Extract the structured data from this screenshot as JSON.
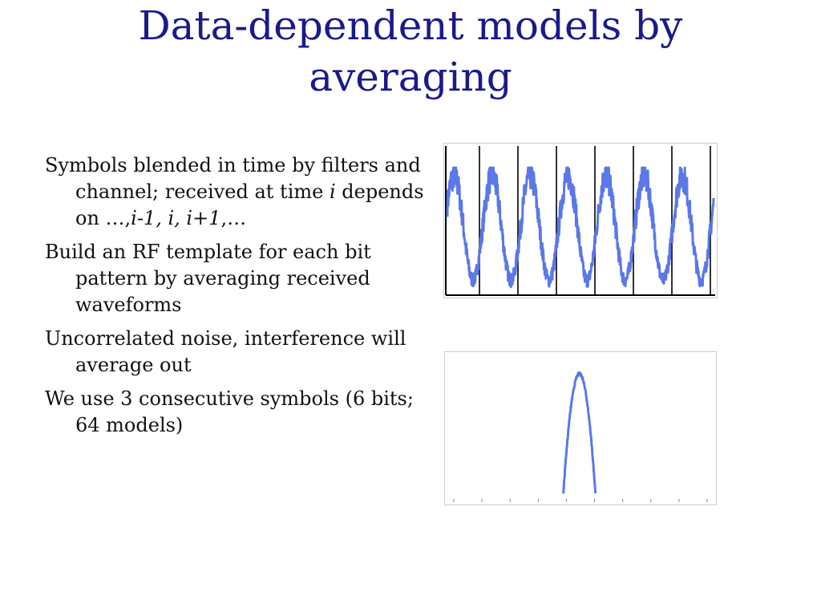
{
  "title": {
    "line1": "Data-dependent models by",
    "line2": "averaging"
  },
  "bullets": [
    {
      "segments": [
        {
          "text": "Symbols blended in time by filters and channel; received at time ",
          "italic": false
        },
        {
          "text": "i",
          "italic": true
        },
        {
          "text": " depends on …,",
          "italic": false
        },
        {
          "text": "i-1, i, i+1",
          "italic": true
        },
        {
          "text": ",…",
          "italic": false
        }
      ]
    },
    {
      "segments": [
        {
          "text": "Build an RF template for each bit pattern by averaging received waveforms",
          "italic": false
        }
      ]
    },
    {
      "segments": [
        {
          "text": "Uncorrelated noise, interference will average out",
          "italic": false
        }
      ]
    },
    {
      "segments": [
        {
          "text": "We use 3 consecutive symbols (6 bits; 64 models)",
          "italic": false
        }
      ]
    }
  ],
  "chart_data": [
    {
      "type": "line",
      "title": "",
      "xlabel": "",
      "ylabel": "",
      "symbol_boundaries": 7,
      "periods": 7,
      "color": "#5b78e8",
      "grid": false
    },
    {
      "type": "line",
      "title": "",
      "xlabel": "",
      "ylabel": "",
      "x_ticks": 10,
      "pulse_center_fraction": 0.49,
      "color": "#5b78e8",
      "grid": false
    }
  ]
}
